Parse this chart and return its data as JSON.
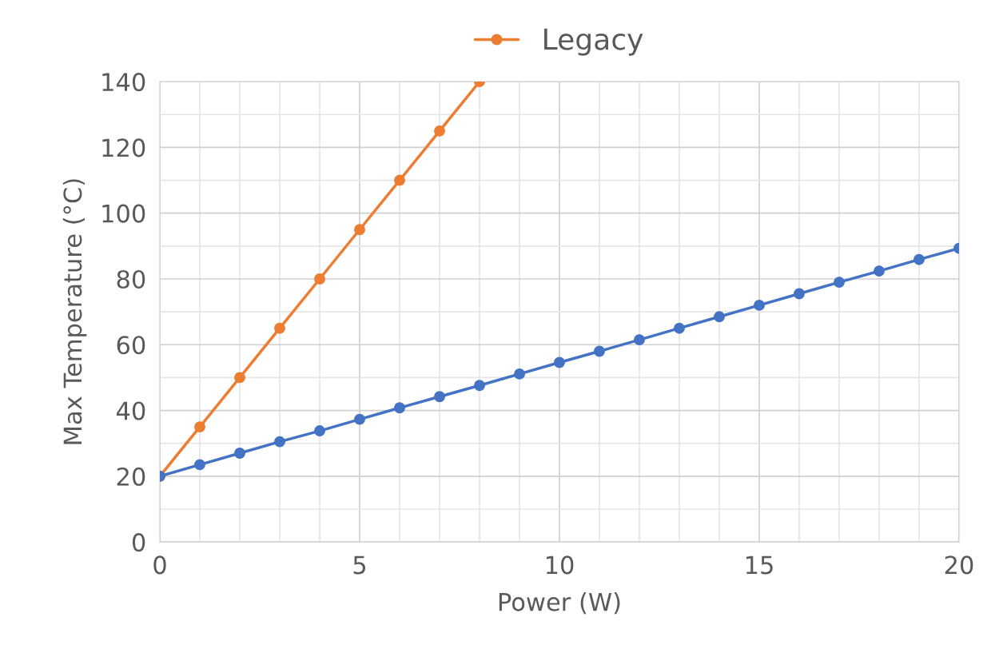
{
  "chart_data": {
    "type": "line",
    "xlabel": "Power (W)",
    "ylabel": "Max Temperature (°C)",
    "xlim": [
      0,
      20
    ],
    "ylim": [
      0,
      140
    ],
    "xticks": [
      0,
      {
        "value": 1,
        "label": null
      },
      {
        "value": 2,
        "label": null
      },
      {
        "value": 3,
        "label": null
      },
      {
        "value": 4,
        "label": null
      },
      5,
      {
        "value": 6,
        "label": null
      },
      {
        "value": 7,
        "label": null
      },
      {
        "value": 8,
        "label": null
      },
      {
        "value": 9,
        "label": null
      },
      10,
      {
        "value": 11,
        "label": null
      },
      {
        "value": 12,
        "label": null
      },
      {
        "value": 13,
        "label": null
      },
      {
        "value": 14,
        "label": null
      },
      15,
      {
        "value": 16,
        "label": null
      },
      {
        "value": 17,
        "label": null
      },
      {
        "value": 18,
        "label": null
      },
      {
        "value": 19,
        "label": null
      },
      20
    ],
    "yticks": [
      0,
      {
        "value": 10,
        "label": null
      },
      20,
      {
        "value": 30,
        "label": null
      },
      40,
      {
        "value": 50,
        "label": null
      },
      60,
      {
        "value": 70,
        "label": null
      },
      80,
      {
        "value": 90,
        "label": null
      },
      100,
      {
        "value": 110,
        "label": null
      },
      120,
      {
        "value": 130,
        "label": null
      },
      140
    ],
    "grid": true,
    "legend": "top",
    "marker": "circle",
    "line_style": "solid",
    "series": [
      {
        "name": "Legacy",
        "color": "#ed7d31",
        "x": [
          0,
          1,
          2,
          3,
          4,
          5,
          6,
          7,
          8
        ],
        "values": [
          20,
          35,
          50,
          65,
          80,
          95,
          110,
          125,
          140
        ]
      },
      {
        "color": "#4472c4",
        "x": [
          0,
          1,
          2,
          3,
          4,
          5,
          6,
          7,
          8,
          9,
          10,
          11,
          12,
          13,
          14,
          15,
          16,
          17,
          18,
          19,
          20
        ],
        "values": [
          20,
          23.5,
          27,
          30.5,
          33.8,
          37.3,
          40.8,
          44.2,
          47.6,
          51.1,
          54.6,
          58,
          61.5,
          65,
          68.5,
          72,
          75.5,
          79,
          82.4,
          85.9,
          89.3
        ]
      }
    ]
  }
}
